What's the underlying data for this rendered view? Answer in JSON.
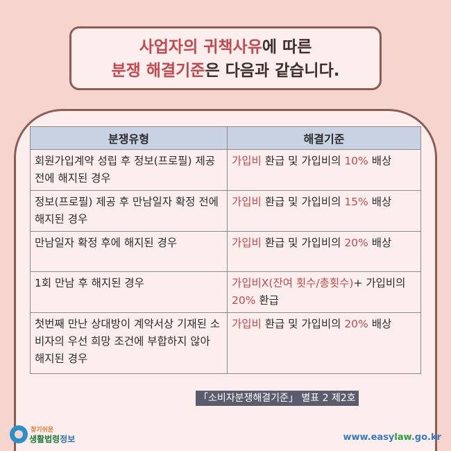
{
  "title": {
    "line1_highlight": "사업자의 귀책사유",
    "line1_rest": "에 따른",
    "line2_highlight": "분쟁 해결기준",
    "line2_rest": "은 다음과 같습니다."
  },
  "table": {
    "headers": [
      "분쟁유형",
      "해결기준"
    ],
    "rows": [
      {
        "type": "회원가입계약 성립 후 정보(프로필) 제공 전에 해지된 경우",
        "r1": "가입비",
        "r2": " 환급 및 가입비의 ",
        "r3": "10%",
        "r4": " 배상"
      },
      {
        "type": "정보(프로필) 제공 후 만남일자 확정 전에 해지된 경우",
        "r1": "가입비",
        "r2": " 환급 및 가입비의 ",
        "r3": "15%",
        "r4": " 배상"
      },
      {
        "type": "만남일자 확정 후에 해지된 경우",
        "r1": "가입비",
        "r2": " 환급 및 가입비의 ",
        "r3": "20%",
        "r4": " 배상"
      },
      {
        "type": "1회 만남 후 해지된 경우",
        "r1": "가입비X(잔여 횟수/총횟수)",
        "r2": "+ 가입비의 ",
        "r3": "20%",
        "r4": " 환급"
      },
      {
        "type": "첫번째 만난 상대방이 계약서상 기재된 소비자의 우선 희망 조건에 부합하지 않아 해지된 경우",
        "r1": "가입비",
        "r2": " 환급 및 가입비의 ",
        "r3": "20%",
        "r4": " 배상"
      }
    ]
  },
  "source": "「소비자분쟁해결기준」 별표 2 제2호",
  "footer": {
    "logo_small": "찾기쉬운",
    "logo_main_a": "생활법령",
    "logo_main_b": "정보",
    "site_a": "www.easy",
    "site_b": "law",
    "site_c": ".go.kr"
  },
  "colors": {
    "background": "#f6d5cf",
    "accent": "#c04a4f",
    "header": "#c9d2e3",
    "border": "#8b5d55"
  }
}
